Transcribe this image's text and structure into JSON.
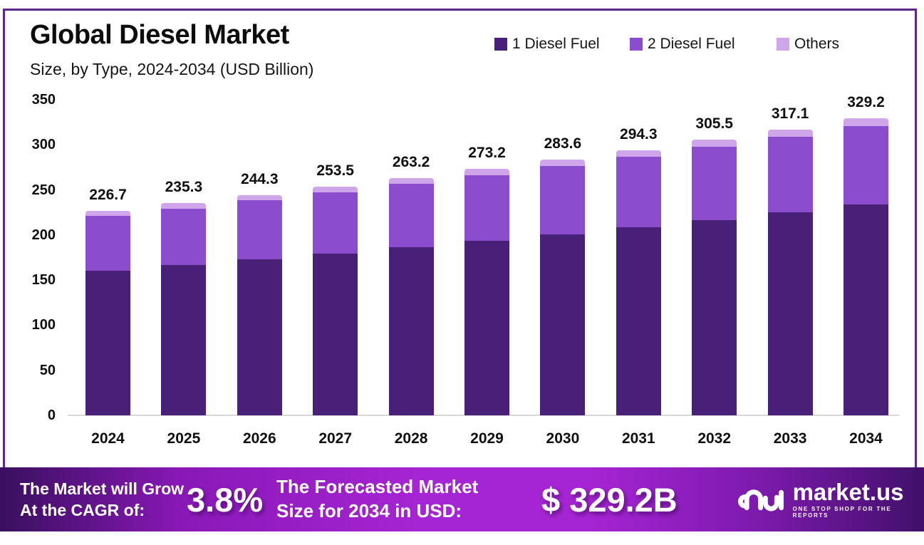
{
  "frame": {
    "border_color": "#61258f"
  },
  "header": {
    "title": "Global Diesel Market",
    "subtitle": "Size, by Type, 2024-2034 (USD Billion)"
  },
  "legend": [
    {
      "label": "1 Diesel Fuel",
      "color": "#482078"
    },
    {
      "label": "2 Diesel Fuel",
      "color": "#8b4dce"
    },
    {
      "label": "Others",
      "color": "#cea6e9"
    }
  ],
  "chart_data": {
    "type": "bar",
    "stacked": true,
    "title": "Global Diesel Market",
    "subtitle": "Size, by Type, 2024-2034 (USD Billion)",
    "xlabel": "",
    "ylabel": "USD Billion",
    "ylim": [
      0,
      350
    ],
    "yticks": [
      0,
      50,
      100,
      150,
      200,
      250,
      300,
      350
    ],
    "grid": false,
    "legend_position": "top-right",
    "categories": [
      "2024",
      "2025",
      "2026",
      "2027",
      "2028",
      "2029",
      "2030",
      "2031",
      "2032",
      "2033",
      "2034"
    ],
    "series": [
      {
        "name": "1 Diesel Fuel",
        "color": "#482078",
        "values": [
          160.3,
          166.5,
          172.9,
          179.5,
          186.4,
          193.6,
          201.0,
          208.7,
          216.7,
          225.1,
          233.7
        ]
      },
      {
        "name": "2 Diesel Fuel",
        "color": "#8b4dce",
        "values": [
          60.8,
          63.0,
          65.4,
          67.8,
          70.3,
          72.9,
          75.6,
          78.4,
          81.3,
          84.2,
          87.4
        ]
      },
      {
        "name": "Others",
        "color": "#cea6e9",
        "values": [
          5.6,
          5.8,
          6.0,
          6.2,
          6.5,
          6.7,
          7.0,
          7.2,
          7.5,
          7.8,
          8.1
        ]
      }
    ],
    "totals": [
      226.7,
      235.3,
      244.3,
      253.5,
      263.2,
      273.2,
      283.6,
      294.3,
      305.5,
      317.1,
      329.2
    ],
    "total_labels": [
      "226.7",
      "235.3",
      "244.3",
      "253.5",
      "263.2",
      "273.2",
      "283.6",
      "294.3",
      "305.5",
      "317.1",
      "329.2"
    ]
  },
  "banner": {
    "cagr_label_line1": "The Market will Grow",
    "cagr_label_line2": "At the CAGR of:",
    "cagr_value": "3.8%",
    "forecast_label_line1": "The Forecasted Market",
    "forecast_label_line2": "Size for 2034 in USD:",
    "forecast_value": "$ 329.2B",
    "logo_text": "market.us",
    "logo_tagline": "ONE STOP SHOP FOR THE REPORTS",
    "gradient": [
      "#390f5e",
      "#8a18b8",
      "#a524d3",
      "#a524d3",
      "#7d1aad",
      "#41106a"
    ]
  }
}
